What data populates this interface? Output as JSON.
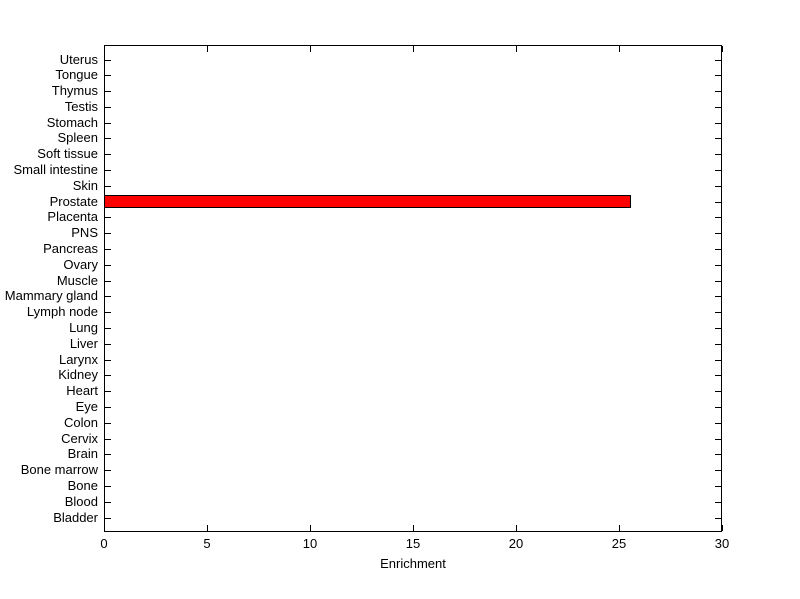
{
  "figure": {
    "background_color": "#FFFFFF",
    "axis_color": "#000000",
    "text_color": "#000000"
  },
  "chart_data": {
    "type": "bar",
    "orientation": "horizontal",
    "title": "",
    "xlabel": "Enrichment",
    "ylabel": "",
    "xlim": [
      0,
      30
    ],
    "xticks": [
      0,
      5,
      10,
      15,
      20,
      25,
      30
    ],
    "grid": false,
    "legend": "none",
    "bar_color": "#FF0000",
    "bar_edge_color": "#000000",
    "categories": [
      "Uterus",
      "Tongue",
      "Thymus",
      "Testis",
      "Stomach",
      "Spleen",
      "Soft tissue",
      "Small intestine",
      "Skin",
      "Prostate",
      "Placenta",
      "PNS",
      "Pancreas",
      "Ovary",
      "Muscle",
      "Mammary gland",
      "Lymph node",
      "Lung",
      "Liver",
      "Larynx",
      "Kidney",
      "Heart",
      "Eye",
      "Colon",
      "Cervix",
      "Brain",
      "Bone marrow",
      "Bone",
      "Blood",
      "Bladder"
    ],
    "values": [
      0,
      0,
      0,
      0,
      0,
      0,
      0,
      0,
      0,
      25.6,
      0,
      0,
      0,
      0,
      0,
      0,
      0,
      0,
      0,
      0,
      0,
      0,
      0,
      0,
      0,
      0,
      0,
      0,
      0,
      0
    ]
  }
}
